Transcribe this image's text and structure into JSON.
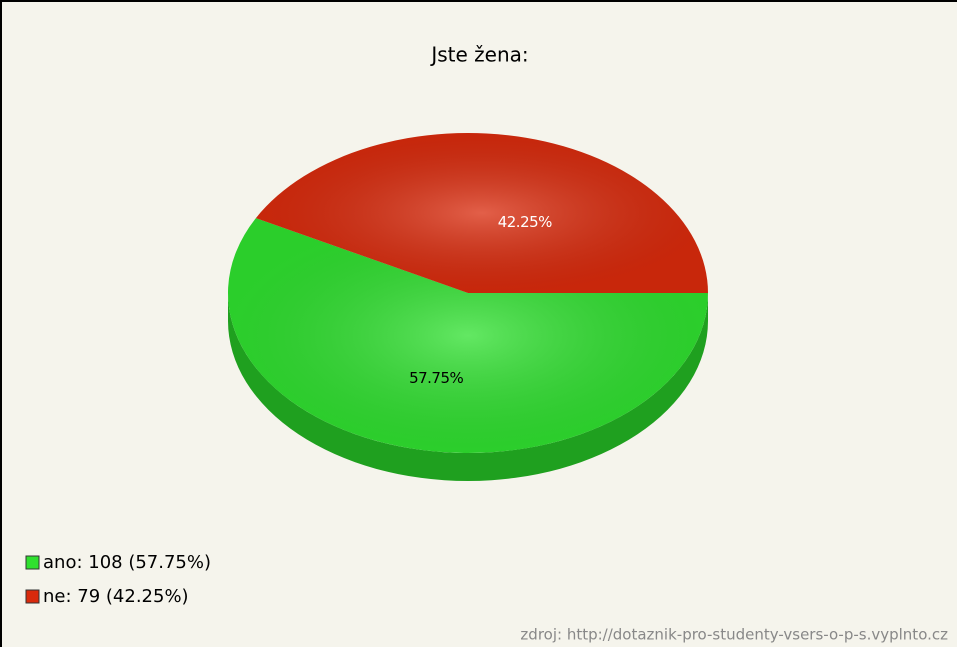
{
  "chart_data": {
    "type": "pie",
    "title": "Jste žena:",
    "categories": [
      "ano: 108 (57.75%)",
      "ne: 79 (42.25%)"
    ],
    "values": [
      57.75,
      42.25
    ],
    "value_labels": [
      "57.75%",
      "42.25%"
    ],
    "colors": [
      "#2fe02f",
      "#d92a0c"
    ],
    "side_colors": [
      "#1fa01f",
      "#9a1a05"
    ],
    "label_colors": [
      "#000000",
      "#ffffff"
    ],
    "source": "zdroj: http://dotaznik-pro-studenty-vsers-o-p-s.vyplnto.cz"
  }
}
